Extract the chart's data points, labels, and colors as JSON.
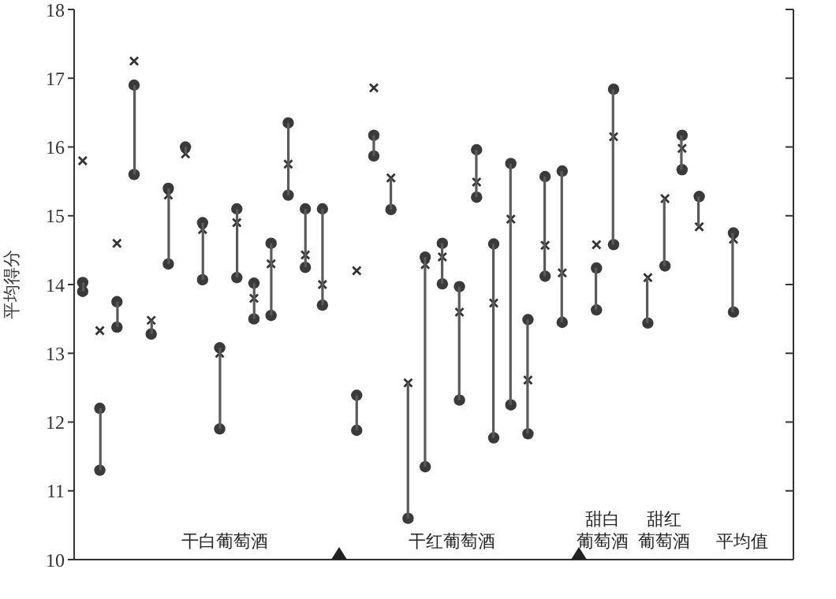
{
  "chart_data": {
    "type": "scatter",
    "ylabel": "平均得分",
    "categories": [
      null,
      null,
      null,
      null,
      null,
      null,
      null,
      null,
      null,
      null,
      null,
      null,
      null,
      null,
      null,
      null,
      null,
      null,
      null,
      null,
      null,
      null,
      null,
      null,
      null,
      null,
      null,
      null,
      null,
      null,
      null,
      null,
      null,
      null,
      null,
      null,
      null,
      null,
      null,
      null,
      null,
      null
    ],
    "series": [
      {
        "marker": "circle",
        "color": "#3a3a3a",
        "values": [
          14.03,
          12.2,
          13.75,
          16.9,
          null,
          15.4,
          16.0,
          14.9,
          13.08,
          15.1,
          14.02,
          14.6,
          16.35,
          15.1,
          15.1,
          null,
          12.39,
          16.17,
          null,
          null,
          14.4,
          14.6,
          13.97,
          15.96,
          14.59,
          15.76,
          13.49,
          15.57,
          15.65,
          null,
          14.24,
          16.84,
          null,
          null,
          null,
          16.17,
          15.28,
          null,
          14.75,
          null,
          null,
          null
        ]
      },
      {
        "marker": "circle",
        "color": "#3a3a3a",
        "values": [
          13.9,
          11.3,
          13.38,
          15.6,
          13.28,
          14.3,
          null,
          14.07,
          11.9,
          14.1,
          13.5,
          13.55,
          15.3,
          14.25,
          13.7,
          null,
          11.88,
          15.87,
          15.09,
          10.6,
          11.35,
          14.01,
          12.32,
          15.27,
          11.77,
          12.25,
          11.83,
          14.12,
          13.45,
          null,
          13.63,
          14.58,
          null,
          13.44,
          14.27,
          15.67,
          null,
          null,
          13.6,
          null,
          null,
          null
        ]
      },
      {
        "marker": "cross",
        "color": "#333333",
        "values": [
          15.8,
          13.33,
          14.6,
          17.25,
          13.48,
          15.3,
          15.9,
          14.8,
          13.0,
          14.9,
          13.8,
          14.3,
          15.75,
          14.43,
          14.0,
          null,
          14.2,
          16.86,
          15.55,
          12.57,
          14.29,
          14.4,
          13.6,
          15.49,
          13.73,
          14.95,
          12.61,
          14.57,
          14.17,
          null,
          14.58,
          16.15,
          null,
          14.1,
          15.25,
          15.98,
          14.84,
          null,
          14.66,
          null,
          null,
          null
        ]
      },
      {
        "type": "bar",
        "color": "#5a5a5a",
        "base": [
          13.9,
          11.3,
          13.38,
          15.6,
          13.28,
          14.3,
          15.9,
          14.07,
          11.9,
          14.1,
          13.5,
          13.55,
          15.3,
          14.25,
          13.7,
          null,
          11.88,
          15.87,
          15.09,
          10.6,
          11.35,
          14.01,
          12.32,
          15.27,
          11.77,
          12.25,
          11.83,
          14.12,
          13.45,
          null,
          13.63,
          14.58,
          null,
          13.44,
          14.27,
          15.67,
          14.84,
          null,
          13.6,
          null,
          null,
          null
        ],
        "values": [
          0.13,
          0.9,
          0.37,
          1.3,
          0.2,
          1.1,
          0.1,
          0.83,
          1.18,
          1.0,
          0.52,
          1.05,
          1.05,
          0.85,
          1.4,
          null,
          0.51,
          0.3,
          0.46,
          1.97,
          3.05,
          0.59,
          1.65,
          0.69,
          2.82,
          3.51,
          1.66,
          1.45,
          2.2,
          null,
          0.61,
          2.26,
          null,
          0.66,
          0.98,
          0.5,
          0.44,
          null,
          1.15,
          null,
          null,
          null
        ]
      }
    ],
    "ylim": [
      10,
      18
    ],
    "yticks": [
      10,
      11,
      12,
      13,
      14,
      15,
      16,
      17,
      18
    ],
    "annotations": [
      "干白葡萄酒",
      "干红葡萄酒",
      "甜白葡萄酒",
      "甜红葡萄酒",
      "平均值"
    ]
  }
}
